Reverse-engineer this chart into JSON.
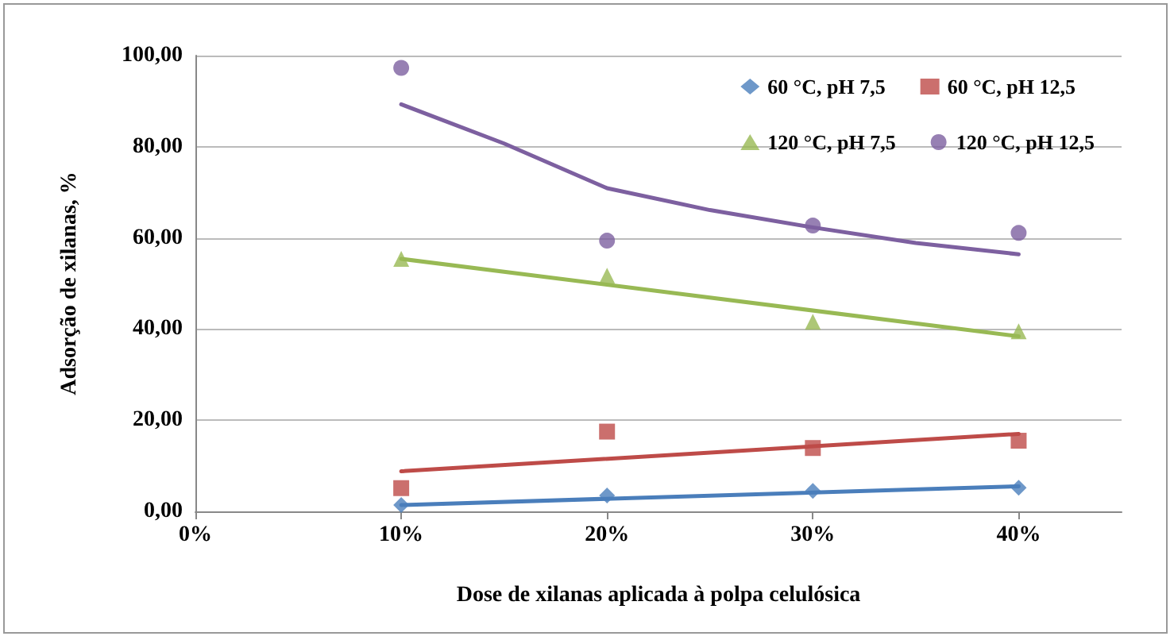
{
  "chart_data": {
    "type": "scatter",
    "xlabel": "Dose de xilanas aplicada à polpa celulósica",
    "ylabel": "Adsorção de xilanas, %",
    "x": [
      10,
      20,
      30,
      40
    ],
    "series": [
      {
        "name": "60 °C, pH 7,5",
        "color": "#4a7ebb",
        "marker": "diamond",
        "values": [
          1.4,
          3.5,
          4.5,
          5.2
        ]
      },
      {
        "name": "60 °C, pH 12,5",
        "color": "#be4b48",
        "marker": "square",
        "values": [
          5.1,
          17.5,
          13.9,
          15.5
        ]
      },
      {
        "name": "120 °C, pH 7,5",
        "color": "#98b954",
        "marker": "triangle",
        "values": [
          55.4,
          51.7,
          41.6,
          39.5
        ]
      },
      {
        "name": "120 °C, pH 12,5",
        "color": "#7d60a0",
        "marker": "circle",
        "values": [
          97.3,
          59.4,
          62.7,
          61.1
        ]
      },
      {
        "type": "line",
        "color": "#4a7ebb",
        "x": [
          10,
          40
        ],
        "values": [
          1.4,
          5.5
        ]
      },
      {
        "type": "line",
        "color": "#be4b48",
        "x": [
          10,
          40
        ],
        "values": [
          8.8,
          17.0
        ]
      },
      {
        "type": "line",
        "color": "#98b954",
        "x": [
          10,
          40
        ],
        "values": [
          55.4,
          38.4
        ]
      },
      {
        "type": "line",
        "color": "#7d60a0",
        "x": [
          10,
          15,
          20,
          25,
          30,
          35,
          40
        ],
        "values": [
          89.3,
          80.7,
          70.9,
          66.1,
          62.3,
          58.9,
          56.4
        ]
      }
    ],
    "xlim": [
      0,
      45
    ],
    "xticks": [
      {
        "value": 0,
        "label": "0%"
      },
      {
        "value": 10,
        "label": "10%"
      },
      {
        "value": 20,
        "label": "20%"
      },
      {
        "value": 30,
        "label": "30%"
      },
      {
        "value": 40,
        "label": "40%"
      }
    ],
    "ylim": [
      0,
      100
    ],
    "yticks": [
      {
        "value": 0,
        "label": "0,00"
      },
      {
        "value": 20,
        "label": "20,00"
      },
      {
        "value": 40,
        "label": "40,00"
      },
      {
        "value": 60,
        "label": "60,00"
      },
      {
        "value": 80,
        "label": "80,00"
      },
      {
        "value": 100,
        "label": "100,00"
      }
    ],
    "grid": "y",
    "legend": "top right"
  }
}
